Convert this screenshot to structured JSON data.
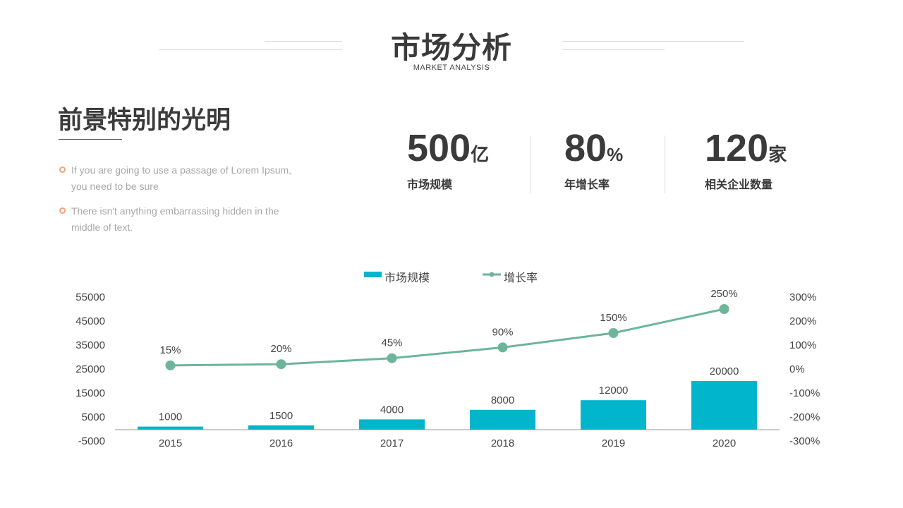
{
  "header": {
    "title": "市场分析",
    "subtitle": "MARKET ANALYSIS"
  },
  "section": {
    "heading": "前景特别的光明",
    "bullets": [
      "If you are going to use a passage of Lorem Ipsum, you need to be sure",
      "There isn't anything embarrassing hidden in the middle of text."
    ]
  },
  "stats": [
    {
      "value": "500",
      "unit": "亿",
      "label": "市场规模"
    },
    {
      "value": "80",
      "unit": "%",
      "label": "年增长率"
    },
    {
      "value": "120",
      "unit": "家",
      "label": "相关企业数量"
    }
  ],
  "colors": {
    "bar": "#00b5cc",
    "line": "#6db59a",
    "text": "#3a3a3a",
    "bullet_dot": "#f0a37a"
  },
  "chart_data": {
    "type": "bar",
    "categories": [
      "2015",
      "2016",
      "2017",
      "2018",
      "2019",
      "2020"
    ],
    "series": [
      {
        "name": "市场规模",
        "type": "bar",
        "axis": "left",
        "values": [
          1000,
          1500,
          4000,
          8000,
          12000,
          20000
        ],
        "labels": [
          "1000",
          "1500",
          "4000",
          "8000",
          "12000",
          "20000"
        ]
      },
      {
        "name": "增长率",
        "type": "line",
        "axis": "right",
        "values": [
          15,
          20,
          45,
          90,
          150,
          250
        ],
        "labels": [
          "15%",
          "20%",
          "45%",
          "90%",
          "150%",
          "250%"
        ]
      }
    ],
    "y_left": {
      "min": -5000,
      "max": 55000,
      "ticks": [
        "55000",
        "45000",
        "35000",
        "25000",
        "15000",
        "5000",
        "-5000"
      ],
      "tick_values": [
        55000,
        45000,
        35000,
        25000,
        15000,
        5000,
        -5000
      ]
    },
    "y_right": {
      "min": -300,
      "max": 300,
      "ticks": [
        "300%",
        "200%",
        "100%",
        "0%",
        "-100%",
        "-200%",
        "-300%"
      ],
      "tick_values": [
        300,
        200,
        100,
        0,
        -100,
        -200,
        -300
      ]
    },
    "grid": false,
    "legend": "top-center"
  }
}
